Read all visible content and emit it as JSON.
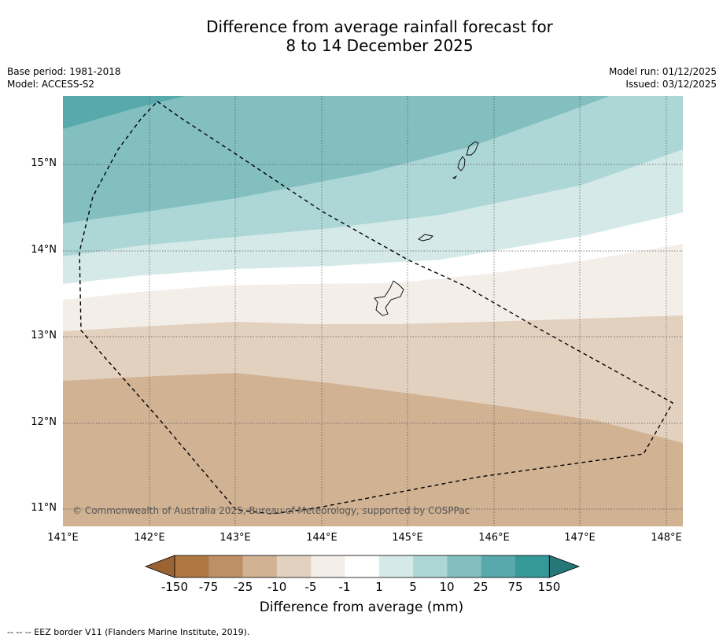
{
  "title": {
    "line1": "Difference from average rainfall forecast for",
    "line2": "8 to 14 December 2025"
  },
  "meta_left": {
    "base_period": "Base period: 1981-2018",
    "model": "Model: ACCESS-S2"
  },
  "meta_right": {
    "model_run": "Model run: 01/12/2025",
    "issued": "Issued: 03/12/2025"
  },
  "map": {
    "lat_labels": [
      "15°N",
      "14°N",
      "13°N",
      "12°N",
      "11°N"
    ],
    "lon_labels": [
      "141°E",
      "142°E",
      "143°E",
      "144°E",
      "145°E",
      "146°E",
      "147°E",
      "148°E"
    ],
    "copyright": "© Commonwealth of Australia 2025, Bureau of Meteorology, supported by COSPPac"
  },
  "colorbar": {
    "tick_labels": [
      "-150",
      "-75",
      "-25",
      "-10",
      "-5",
      "-1",
      "1",
      "5",
      "10",
      "25",
      "75",
      "150"
    ],
    "colors": [
      "#9b6332",
      "#ae7741",
      "#be9066",
      "#d1b293",
      "#e3d1c0",
      "#f4eee9",
      "#ffffff",
      "#d5e9e8",
      "#add7d6",
      "#83bfbf",
      "#58a9ab",
      "#359899",
      "#267777"
    ],
    "title": "Difference from average (mm)"
  },
  "footnote": "--  --  -- EEZ border V11 (Flanders Marine Institute, 2019)."
}
